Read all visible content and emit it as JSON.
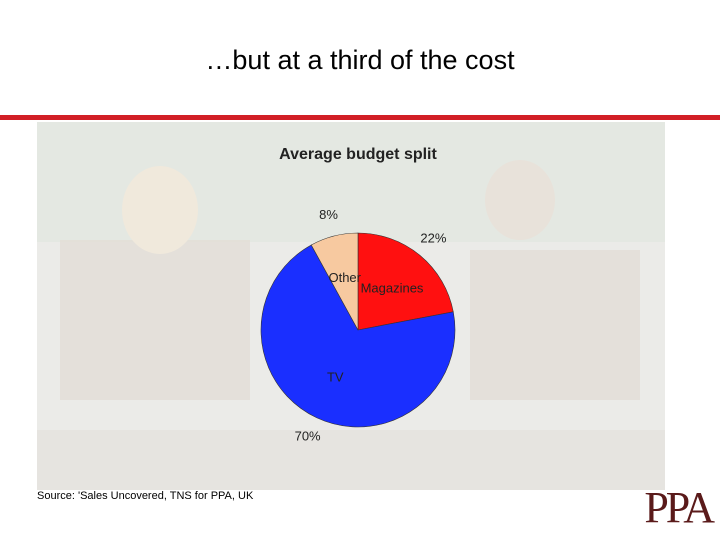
{
  "slide_title": "…but at a third of the cost",
  "source": "Source: 'Sales Uncovered, TNS for PPA, UK",
  "logo": "PPA",
  "chart_data": {
    "type": "pie",
    "title": "Average budget split",
    "categories": [
      "Magazines",
      "TV",
      "Other"
    ],
    "values": [
      22,
      70,
      8
    ],
    "value_labels": [
      "22%",
      "70%",
      "8%"
    ],
    "colors": [
      "#ff1010",
      "#1a2fff",
      "#f7c9a0"
    ]
  }
}
